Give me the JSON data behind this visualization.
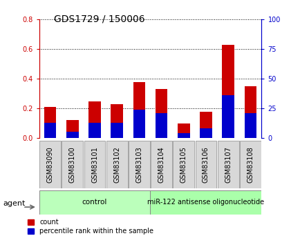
{
  "title": "GDS1729 / 150006",
  "samples": [
    "GSM83090",
    "GSM83100",
    "GSM83101",
    "GSM83102",
    "GSM83103",
    "GSM83104",
    "GSM83105",
    "GSM83106",
    "GSM83107",
    "GSM83108"
  ],
  "count_values": [
    0.21,
    0.12,
    0.245,
    0.23,
    0.375,
    0.33,
    0.1,
    0.175,
    0.625,
    0.35
  ],
  "percentile_values": [
    13,
    5,
    13,
    13,
    24,
    21,
    4,
    8,
    36,
    21
  ],
  "ylim_left": [
    0,
    0.8
  ],
  "ylim_right": [
    0,
    100
  ],
  "yticks_left": [
    0,
    0.2,
    0.4,
    0.6,
    0.8
  ],
  "yticks_right": [
    0,
    25,
    50,
    75,
    100
  ],
  "left_color": "#cc0000",
  "right_color": "#0000cc",
  "bar_width": 0.55,
  "group_labels": [
    "control",
    "miR-122 antisense oligonucleotide"
  ],
  "group_split": 5,
  "group_color_ctrl": "#bbffbb",
  "group_color_mir": "#aaffaa",
  "agent_label": "agent",
  "legend_count": "count",
  "legend_percentile": "percentile rank within the sample",
  "title_fontsize": 10,
  "tick_fontsize": 7,
  "bg_color": "#d8d8d8",
  "plot_bg": "#ffffff"
}
